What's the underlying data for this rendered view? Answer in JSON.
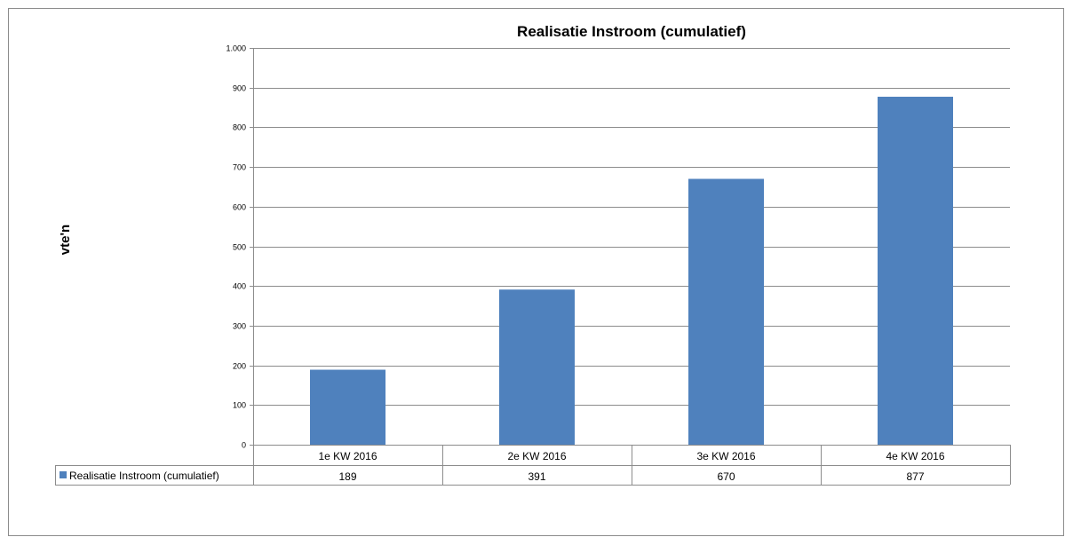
{
  "chart_data": {
    "type": "bar",
    "title": "Realisatie Instroom (cumulatief)",
    "xlabel": "",
    "ylabel": "vte'n",
    "categories": [
      "1e KW 2016",
      "2e KW 2016",
      "3e KW 2016",
      "4e KW 2016"
    ],
    "series": [
      {
        "name": "Realisatie Instroom (cumulatief)",
        "values": [
          189,
          391,
          670,
          877
        ],
        "color": "#4f81bd"
      }
    ],
    "table_values": [
      "189",
      "391",
      "670",
      "877"
    ],
    "ylim": [
      0,
      1000
    ],
    "yticks": [
      0,
      100,
      200,
      300,
      400,
      500,
      600,
      700,
      800,
      900,
      1000
    ],
    "ytick_labels": [
      "0",
      "100",
      "200",
      "300",
      "400",
      "500",
      "600",
      "700",
      "800",
      "900",
      "1.000"
    ],
    "grid": true,
    "legend": "data-table"
  }
}
